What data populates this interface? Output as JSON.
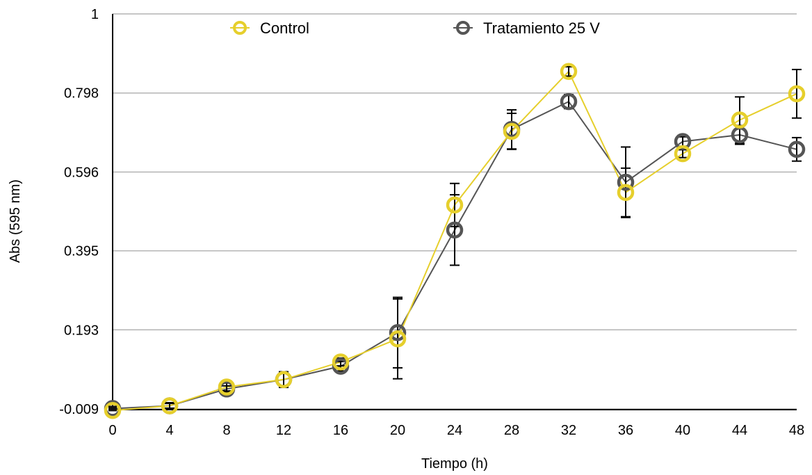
{
  "chart_data": {
    "type": "line",
    "title": "",
    "xlabel": "Tiempo (h)",
    "ylabel": "Abs (595 nm)",
    "x": [
      0,
      4,
      8,
      12,
      16,
      20,
      24,
      28,
      32,
      36,
      40,
      44,
      48
    ],
    "x_tick_labels": [
      "0",
      "4",
      "8",
      "12",
      "16",
      "20",
      "24",
      "28",
      "32",
      "36",
      "40",
      "44",
      "48"
    ],
    "xlim": [
      0,
      48
    ],
    "ylim": [
      -0.009,
      1
    ],
    "y_tick_values": [
      -0.009,
      0.193,
      0.395,
      0.596,
      0.798,
      1
    ],
    "y_tick_labels": [
      "-0.009",
      "0.193",
      "0.395",
      "0.596",
      "0.798",
      "1"
    ],
    "grid": "horizontal",
    "legend_position": "top",
    "series": [
      {
        "name": "Control",
        "color": "#e6cf2c",
        "values": [
          -0.013,
          -0.001,
          0.047,
          0.066,
          0.111,
          0.17,
          0.512,
          0.7,
          0.853,
          0.544,
          0.643,
          0.729,
          0.796
        ],
        "error": [
          0.0,
          0.008,
          0.01,
          0.02,
          0.01,
          0.102,
          0.055,
          0.046,
          0.012,
          0.062,
          0.01,
          0.059,
          0.062
        ]
      },
      {
        "name": "Tratamiento 25 V",
        "color": "#555555",
        "values": [
          -0.008,
          -0.001,
          0.042,
          0.066,
          0.1,
          0.186,
          0.448,
          0.705,
          0.776,
          0.57,
          0.674,
          0.691,
          0.654
        ],
        "error": [
          0.0,
          0.006,
          0.008,
          0.02,
          0.012,
          0.09,
          0.09,
          0.05,
          0.018,
          0.09,
          0.012,
          0.024,
          0.03
        ]
      }
    ]
  }
}
